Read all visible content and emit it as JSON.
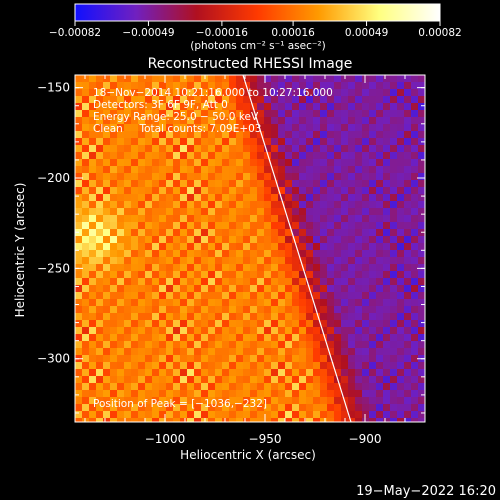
{
  "chart_data": {
    "type": "heatmap",
    "title": "Reconstructed RHESSI Image",
    "xlabel": "Heliocentric X (arcsec)",
    "ylabel": "Heliocentric Y (arcsec)",
    "xlim": [
      -1045,
      -870
    ],
    "ylim": [
      -335,
      -143
    ],
    "x_ticks": [
      -1000,
      -950,
      -900
    ],
    "x_tick_labels": [
      "−1000",
      "−950",
      "−900"
    ],
    "y_ticks": [
      -150,
      -200,
      -250,
      -300
    ],
    "y_tick_labels": [
      "−150",
      "−200",
      "−250",
      "−300"
    ],
    "colorbar": {
      "range": [
        -0.00082,
        0.00082
      ],
      "ticks": [
        -0.00082,
        -0.00049,
        -0.00016,
        0.00016,
        0.00049,
        0.00082
      ],
      "tick_labels": [
        "−0.00082",
        "−0.00049",
        "−0.00016",
        "0.00016",
        "0.00049",
        "0.00082"
      ],
      "units": "(photons cm⁻² s⁻¹ asec⁻²)",
      "colormap": [
        "#1010ff",
        "#7020c0",
        "#b01020",
        "#ff3a00",
        "#ff9a00",
        "#ffff80",
        "#ffffff"
      ]
    },
    "annotations": [
      "18−Nov−2014 10:21:16.000 to 10:27:16.000",
      "Detectors: 3F 6F 9F, Att 0",
      "Energy Range: 25.0 − 50.0 keV",
      "Clean     Total counts: 7.09E+03"
    ],
    "peak_label": "Position of Peak = [−1036,−232]",
    "peak": [
      -1036,
      -232
    ],
    "limb_line": [
      [
        -961,
        -143
      ],
      [
        -907,
        -335
      ]
    ],
    "limb_color": "#ffffff"
  },
  "footer": {
    "timestamp": "19−May−2022 16:20"
  }
}
